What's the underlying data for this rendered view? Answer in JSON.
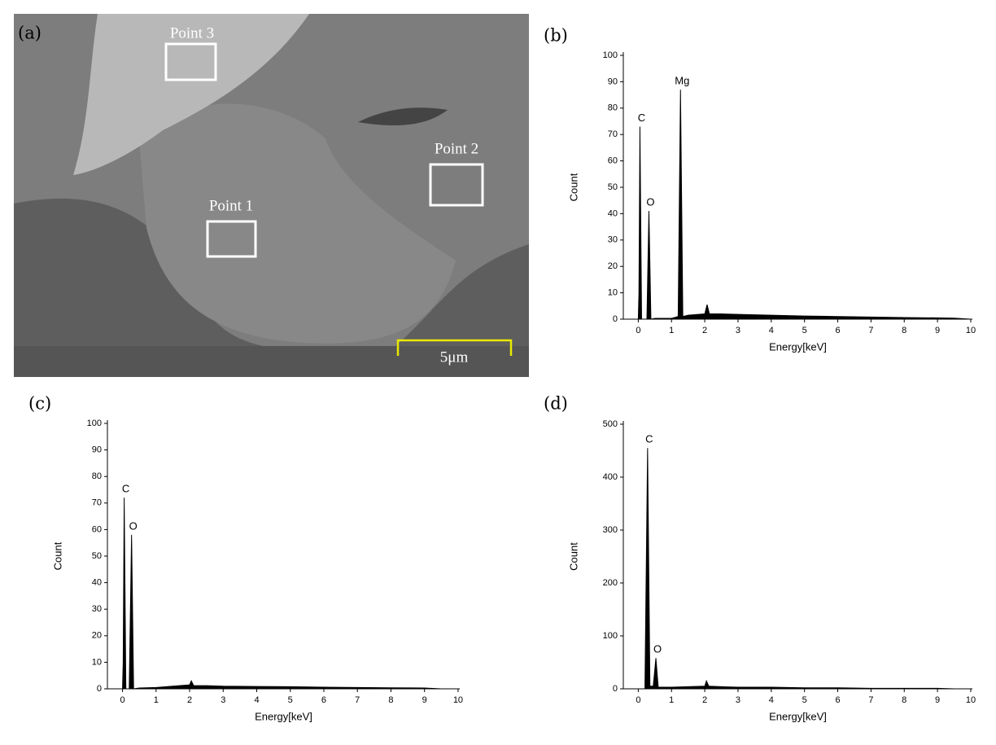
{
  "image_panel": {
    "label": "(a)",
    "points": [
      "Point 3",
      "Point 2",
      "Point 1"
    ],
    "scale_bar": "5μm"
  },
  "chart_data": [
    {
      "type": "line",
      "panel_label": "(b)",
      "x_label": "Energy[keV]",
      "y_label": "Count",
      "color": "#000000",
      "x": [
        0,
        0.02,
        0.05,
        0.1,
        0.26,
        0.32,
        0.38,
        0.5,
        1.0,
        1.2,
        1.27,
        1.34,
        1.5,
        2.0,
        2.07,
        2.14,
        2.5,
        3,
        4,
        5,
        6,
        7,
        8,
        9,
        9.5,
        10
      ],
      "values": [
        0,
        10,
        73,
        0,
        0,
        41,
        0,
        0.3,
        0.3,
        1,
        87,
        1,
        1.5,
        2,
        5.5,
        2,
        2,
        1.8,
        1.5,
        1.2,
        1,
        0.8,
        0.6,
        0.5,
        0.4,
        0
      ],
      "xlim": [
        -0.45,
        10.05
      ],
      "xticks": [
        0,
        1,
        2,
        3,
        4,
        5,
        6,
        7,
        8,
        9,
        10
      ],
      "ylim": [
        0,
        100
      ],
      "yticks": [
        0,
        10,
        20,
        30,
        40,
        50,
        60,
        70,
        80,
        90,
        100
      ],
      "annotations": [
        {
          "text": "C",
          "x": 0.05,
          "y": 73
        },
        {
          "text": "O",
          "x": 0.32,
          "y": 41
        },
        {
          "text": "Mg",
          "x": 1.27,
          "y": 87
        }
      ]
    },
    {
      "type": "line",
      "panel_label": "(c)",
      "x_label": "Energy[keV]",
      "y_label": "Count",
      "color": "#000000",
      "x": [
        0,
        0.02,
        0.05,
        0.1,
        0.2,
        0.27,
        0.33,
        0.5,
        1,
        1.5,
        2.0,
        2.05,
        2.12,
        2.5,
        3,
        4,
        5,
        6,
        7,
        8,
        9,
        9.5
      ],
      "values": [
        0,
        10,
        72,
        0,
        0,
        58,
        0,
        0.3,
        0.5,
        1,
        1.5,
        3,
        1.2,
        1.2,
        1,
        0.9,
        0.8,
        0.6,
        0.5,
        0.4,
        0.3,
        0
      ],
      "xlim": [
        -0.45,
        10.05
      ],
      "xticks": [
        0,
        1,
        2,
        3,
        4,
        5,
        6,
        7,
        8,
        9,
        10
      ],
      "ylim": [
        0,
        100
      ],
      "yticks": [
        0,
        10,
        20,
        30,
        40,
        50,
        60,
        70,
        80,
        90,
        100
      ],
      "annotations": [
        {
          "text": "C",
          "x": 0.05,
          "y": 72
        },
        {
          "text": "O",
          "x": 0.27,
          "y": 58
        }
      ]
    },
    {
      "type": "line",
      "panel_label": "(d)",
      "x_label": "Energy[keV]",
      "y_label": "Count",
      "color": "#000000",
      "x": [
        0,
        0.2,
        0.28,
        0.35,
        0.45,
        0.53,
        0.6,
        1,
        1.5,
        2.0,
        2.05,
        2.12,
        2.5,
        3,
        4,
        5,
        6,
        7,
        8,
        9,
        9.5
      ],
      "values": [
        0,
        0,
        455,
        5,
        5,
        58,
        3,
        3,
        4,
        5,
        15,
        5,
        4,
        3,
        3,
        2,
        2,
        1,
        1,
        1,
        0
      ],
      "xlim": [
        -0.45,
        10.05
      ],
      "xticks": [
        0,
        1,
        2,
        3,
        4,
        5,
        6,
        7,
        8,
        9,
        10
      ],
      "ylim": [
        0,
        500
      ],
      "yticks": [
        0,
        100,
        200,
        300,
        400,
        500
      ],
      "annotations": [
        {
          "text": "C",
          "x": 0.28,
          "y": 455
        },
        {
          "text": "O",
          "x": 0.53,
          "y": 58
        }
      ]
    }
  ]
}
